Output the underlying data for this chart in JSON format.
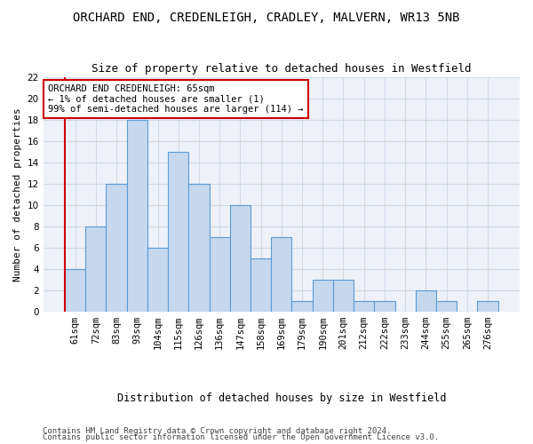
{
  "title": "ORCHARD END, CREDENLEIGH, CRADLEY, MALVERN, WR13 5NB",
  "subtitle": "Size of property relative to detached houses in Westfield",
  "xlabel": "Distribution of detached houses by size in Westfield",
  "ylabel": "Number of detached properties",
  "categories": [
    "61sqm",
    "72sqm",
    "83sqm",
    "93sqm",
    "104sqm",
    "115sqm",
    "126sqm",
    "136sqm",
    "147sqm",
    "158sqm",
    "169sqm",
    "179sqm",
    "190sqm",
    "201sqm",
    "212sqm",
    "222sqm",
    "233sqm",
    "244sqm",
    "255sqm",
    "265sqm",
    "276sqm"
  ],
  "values": [
    4,
    8,
    12,
    18,
    6,
    15,
    12,
    7,
    10,
    5,
    7,
    1,
    3,
    3,
    1,
    1,
    0,
    2,
    1,
    0,
    1
  ],
  "bar_color": "#c5d8ed",
  "bar_edge_color": "#5b9bd5",
  "annotation_text": "ORCHARD END CREDENLEIGH: 65sqm\n← 1% of detached houses are smaller (1)\n99% of semi-detached houses are larger (114) →",
  "annotation_box_color": "#ffffff",
  "annotation_box_edge_color": "#cc0000",
  "grid_color": "#d0d8e8",
  "background_color": "#eef2f8",
  "ylim": [
    0,
    22
  ],
  "footer_line1": "Contains HM Land Registry data © Crown copyright and database right 2024.",
  "footer_line2": "Contains public sector information licensed under the Open Government Licence v3.0.",
  "title_fontsize": 10,
  "subtitle_fontsize": 9,
  "axis_label_fontsize": 8,
  "ylabel_fontsize": 8,
  "tick_fontsize": 7.5,
  "annotation_fontsize": 7.5,
  "footer_fontsize": 6.5,
  "xlabel_fontsize": 8.5
}
